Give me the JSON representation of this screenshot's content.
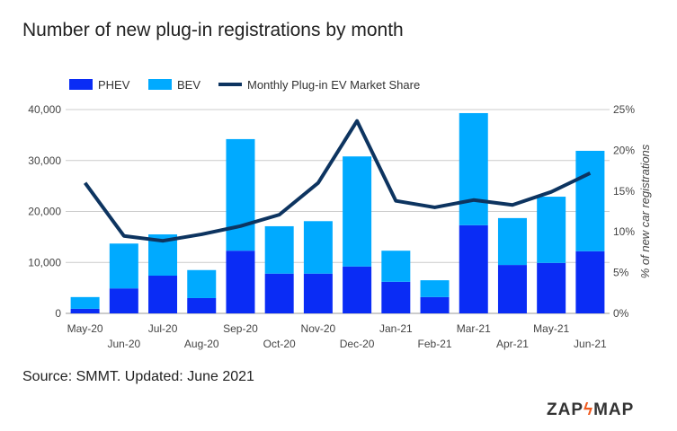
{
  "title": "Number of new plug-in registrations by month",
  "source": "Source: SMMT. Updated: June 2021",
  "logo": {
    "left": "ZAP",
    "right": "MAP"
  },
  "colors": {
    "phev": "#0a2cf5",
    "bev": "#00aaff",
    "share": "#0d3460"
  },
  "chart_data": {
    "type": "bar",
    "stacked": true,
    "categories": [
      "May-20",
      "Jun-20",
      "Jul-20",
      "Aug-20",
      "Sep-20",
      "Oct-20",
      "Nov-20",
      "Dec-20",
      "Jan-21",
      "Feb-21",
      "Mar-21",
      "Apr-21",
      "May-21",
      "Jun-21"
    ],
    "series": [
      {
        "name": "PHEV",
        "values": [
          900,
          4900,
          7400,
          3000,
          12300,
          7800,
          7800,
          9200,
          6200,
          3200,
          17300,
          9500,
          9900,
          12200
        ]
      },
      {
        "name": "BEV",
        "values": [
          2300,
          8800,
          8100,
          5500,
          21900,
          9300,
          10300,
          21600,
          6100,
          3300,
          22000,
          9200,
          13000,
          19700
        ]
      },
      {
        "name": "Monthly Plug-in EV Market Share",
        "type": "line",
        "axis": "right",
        "values": [
          16.0,
          9.5,
          8.9,
          9.7,
          10.7,
          12.1,
          16.0,
          23.6,
          13.8,
          13.0,
          13.9,
          13.3,
          14.9,
          17.2
        ]
      }
    ],
    "ylim": [
      0,
      40000
    ],
    "yticks": [
      "0",
      "10,000",
      "20,000",
      "30,000",
      "40,000"
    ],
    "y2lim": [
      0,
      25
    ],
    "y2ticks": [
      "0%",
      "5%",
      "10%",
      "15%",
      "20%",
      "25%"
    ],
    "y2label": "% of new car registrations",
    "grid": true,
    "legend": "top-left"
  }
}
